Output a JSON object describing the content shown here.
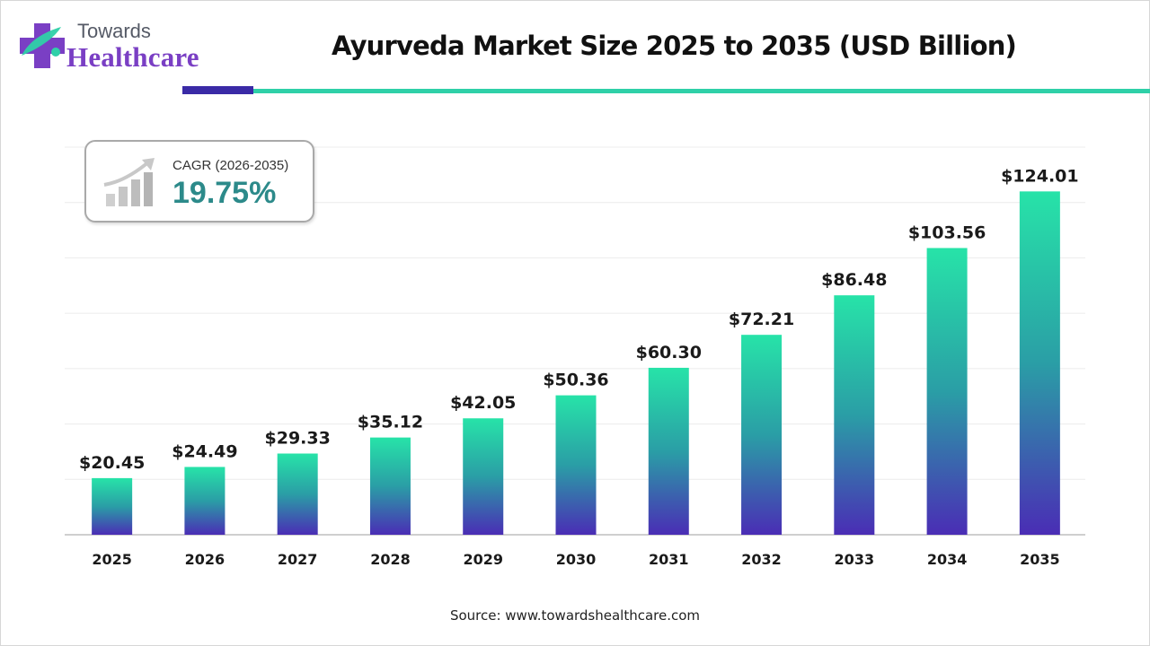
{
  "brand": {
    "top": "Towards",
    "main": "Healthcare"
  },
  "colors": {
    "bar_top": "#27e3a8",
    "bar_mid": "#2a9ea6",
    "bar_bottom": "#4a2db5",
    "accent_dark": "#3a2aa6",
    "accent_teal": "#2fd0a8",
    "cagr_value": "#2c8a8a",
    "brand_purple": "#7a3fc4"
  },
  "cagr": {
    "label": "CAGR (2026-2035)",
    "value": "19.75%",
    "icon": "growth-chart-icon"
  },
  "source": "Source: www.towardshealthcare.com",
  "chart_data": {
    "type": "bar",
    "title": "Ayurveda Market Size 2025 to 2035 (USD Billion)",
    "xlabel": "",
    "ylabel": "",
    "categories": [
      "2025",
      "2026",
      "2027",
      "2028",
      "2029",
      "2030",
      "2031",
      "2032",
      "2033",
      "2034",
      "2035"
    ],
    "values": [
      20.45,
      24.49,
      29.33,
      35.12,
      42.05,
      50.36,
      60.3,
      72.21,
      86.48,
      103.56,
      124.01
    ],
    "data_labels": [
      "$20.45",
      "$24.49",
      "$29.33",
      "$35.12",
      "$42.05",
      "$50.36",
      "$60.30",
      "$72.21",
      "$86.48",
      "$103.56",
      "$124.01"
    ],
    "ylim": [
      0,
      140
    ],
    "grid": true,
    "legend": "none"
  }
}
